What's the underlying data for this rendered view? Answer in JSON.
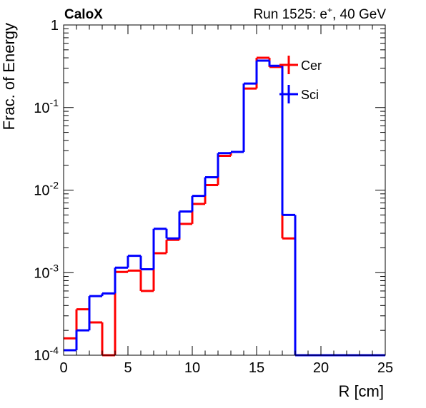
{
  "chart_data": {
    "type": "histogram",
    "title_left": "CaloX",
    "title_right_prefix": "Run 1525: e",
    "title_right_sup": "+",
    "title_right_suffix": ", 40 GeV",
    "xlabel": "R [cm]",
    "ylabel": "Frac. of Energy",
    "xlim": [
      0,
      25
    ],
    "ylim": [
      0.0001,
      1
    ],
    "yscale": "log",
    "grid": false,
    "legend_position": "top-right",
    "x_ticks": [
      "0",
      "5",
      "10",
      "15",
      "20",
      "25"
    ],
    "y_ticks": [
      {
        "base": "10",
        "exp": "-4"
      },
      {
        "base": "10",
        "exp": "-3"
      },
      {
        "base": "10",
        "exp": "-2"
      },
      {
        "base": "10",
        "exp": "-1"
      },
      {
        "base": "1",
        "exp": ""
      }
    ],
    "bin_edges": [
      0,
      1,
      2,
      3,
      4,
      5,
      6,
      7,
      8,
      9,
      10,
      11,
      12,
      13,
      14,
      15,
      16,
      17,
      18,
      19,
      20,
      21,
      22,
      23,
      24,
      25
    ],
    "series": [
      {
        "name": "Cer",
        "color": "#ff0000",
        "values": [
          0.00016,
          0.00036,
          0.00025,
          0.0001,
          0.00102,
          0.00106,
          0.0006,
          0.00172,
          0.0025,
          0.0039,
          0.0068,
          0.0115,
          0.026,
          0.029,
          0.17,
          0.4,
          0.31,
          0.0026,
          0.0001,
          0.0001,
          0.0001,
          0.0001,
          0.0001,
          0.0001,
          0.0001
        ]
      },
      {
        "name": "Sci",
        "color": "#0000ff",
        "values": [
          0.000115,
          0.0002,
          0.00052,
          0.00056,
          0.00115,
          0.0016,
          0.0011,
          0.0034,
          0.0026,
          0.0055,
          0.0085,
          0.0143,
          0.028,
          0.029,
          0.195,
          0.37,
          0.32,
          0.005,
          0.0001,
          0.0001,
          0.0001,
          0.0001,
          0.0001,
          0.0001,
          0.0001
        ]
      }
    ]
  }
}
